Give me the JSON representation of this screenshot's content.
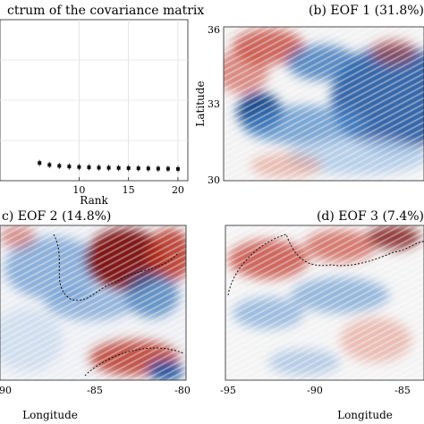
{
  "figure": {
    "colors": {
      "blue": "#1f5fa8",
      "blue_dark": "#0b3f86",
      "red": "#b5301f",
      "red_dark": "#7a1010",
      "neutral": "#f2f2f2"
    }
  },
  "chart_data": [
    {
      "type": "scatter",
      "panel": "(a)",
      "title": "ctrum of the covariance matrix",
      "xlabel": "Rank",
      "ylabel": "",
      "xlim": [
        2,
        21
      ],
      "ylim": [
        0,
        1
      ],
      "xticks": [
        10,
        15,
        20
      ],
      "x": [
        6,
        7,
        8,
        9,
        10,
        11,
        12,
        13,
        14,
        15,
        16,
        17,
        18,
        19,
        20
      ],
      "values": [
        0.11,
        0.098,
        0.092,
        0.088,
        0.085,
        0.083,
        0.081,
        0.08,
        0.079,
        0.078,
        0.077,
        0.076,
        0.075,
        0.074,
        0.073
      ],
      "grid": true
    },
    {
      "type": "heatmap",
      "panel": "(b)",
      "title": "(b) EOF 1 (31.8%)",
      "ylabel": "Latitude",
      "yticks": [
        "36",
        "33",
        "30"
      ]
    },
    {
      "type": "heatmap",
      "panel": "(c)",
      "title": "c) EOF 2 (14.8%)",
      "xlabel": "Longitude",
      "xticks": [
        "90",
        "-85",
        "-80"
      ]
    },
    {
      "type": "heatmap",
      "panel": "(d)",
      "title": "(d) EOF 3 (7.4%)",
      "xlabel": "Longitude",
      "xticks": [
        "-95",
        "-90",
        "-85"
      ]
    }
  ]
}
